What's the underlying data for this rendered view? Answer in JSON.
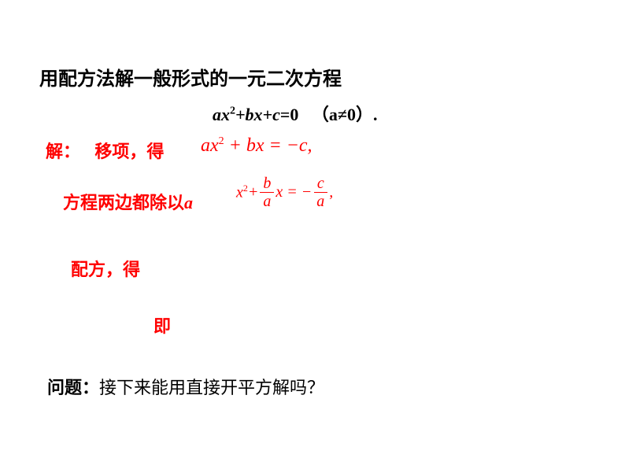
{
  "title": "用配方法解一般形式的一元二次方程",
  "general_equation": {
    "expr_prefix": "ax",
    "sup1": "2",
    "plus_bx": "+bx+c",
    "eq0": "=0",
    "condition": "（a≠0）."
  },
  "step1": {
    "label_prefix": "解：",
    "label_action": "移项，得",
    "eq_ax": "ax",
    "eq_sup": "2",
    "eq_rest": " + bx = −c,"
  },
  "step2": {
    "label_text": "方程两边都除以",
    "label_var": "a",
    "x": "x",
    "sup": "2",
    "plus": " + ",
    "frac1_num": "b",
    "frac1_den": "a",
    "mid": "x = − ",
    "frac2_num": "c",
    "frac2_den": "a",
    "tail": ","
  },
  "step3": {
    "label": "配方，得"
  },
  "step4": {
    "label": "即"
  },
  "question": {
    "prefix": "问题：",
    "text": "接下来能用直接开平方解吗？"
  },
  "colors": {
    "text_black": "#000000",
    "text_red": "#ff0000",
    "background": "#ffffff"
  },
  "typography": {
    "title_fontsize": 24,
    "body_fontsize": 22,
    "math_fontsize": 20
  }
}
